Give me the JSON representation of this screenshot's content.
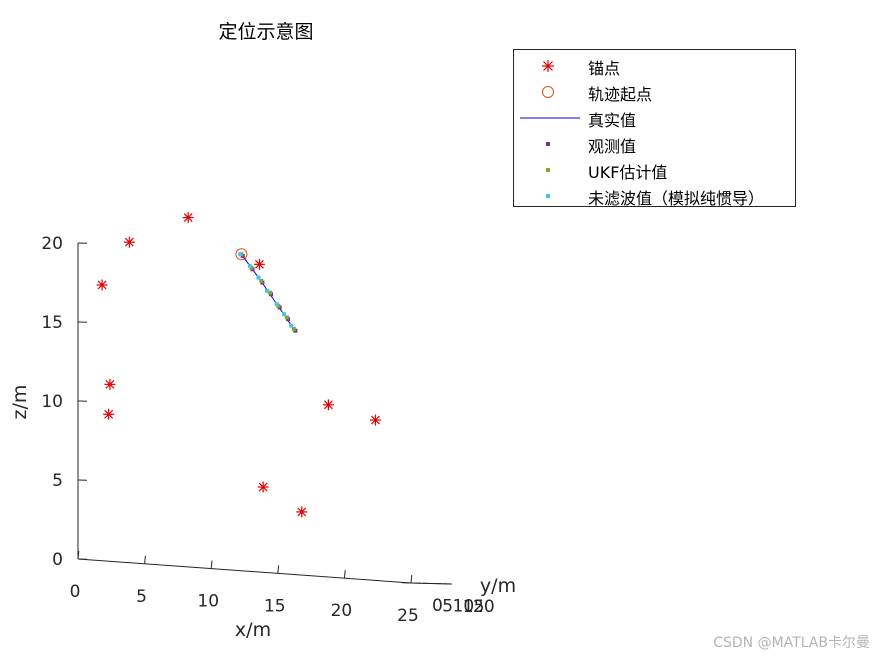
{
  "chart_data": {
    "type": "scatter",
    "title": "定位示意图",
    "xlabel": "x/m",
    "ylabel": "y/m",
    "zlabel": "z/m",
    "xlim": [
      0,
      25
    ],
    "ylim": [
      0,
      20
    ],
    "zlim": [
      0,
      20
    ],
    "xticks": [
      "0",
      "5",
      "10",
      "15",
      "20",
      "25"
    ],
    "yticks": [
      "0",
      "5",
      "10",
      "15",
      "20"
    ],
    "zticks": [
      "0",
      "5",
      "10",
      "15",
      "20"
    ],
    "legend_position": "top-right",
    "series": [
      {
        "name": "锚点",
        "marker": "asterisk",
        "color": "#e00000",
        "points": [
          [
            2.3,
            0,
            9.3
          ],
          [
            2.4,
            0,
            11.2
          ],
          [
            0.5,
            8.5,
            17.4
          ],
          [
            1.7,
            14,
            20.2
          ],
          [
            5.5,
            18,
            22.0
          ],
          [
            11.7,
            12.5,
            19.4
          ],
          [
            18.8,
            0,
            10.9
          ],
          [
            16.8,
            0,
            4.0
          ],
          [
            21.1,
            8,
            10.1
          ],
          [
            13.9,
            0,
            5.4
          ]
        ]
      },
      {
        "name": "轨迹起点",
        "marker": "circle",
        "color": "#d95319",
        "points": [
          [
            11.5,
            5,
            20
          ]
        ]
      },
      {
        "name": "真实值",
        "marker": "line",
        "color": "#0000ff",
        "points": [
          [
            11.5,
            5,
            20
          ],
          [
            12.8,
            5.5,
            18.5
          ],
          [
            14.0,
            6,
            17.0
          ],
          [
            15.2,
            6.5,
            15.5
          ]
        ]
      },
      {
        "name": "观测值",
        "marker": "square",
        "color": "#7e2f8e",
        "points": [
          [
            11.6,
            5.0,
            19.9
          ],
          [
            12.3,
            5.2,
            19.1
          ],
          [
            13.0,
            5.5,
            18.3
          ],
          [
            13.6,
            5.8,
            17.6
          ],
          [
            14.2,
            6.1,
            16.8
          ],
          [
            14.8,
            6.3,
            16.1
          ],
          [
            15.3,
            6.6,
            15.4
          ]
        ]
      },
      {
        "name": "UKF估计值",
        "marker": "square",
        "color": "#77ac30",
        "points": [
          [
            11.5,
            5.0,
            20.0
          ],
          [
            12.2,
            5.3,
            19.2
          ],
          [
            12.9,
            5.6,
            18.4
          ],
          [
            13.5,
            5.9,
            17.7
          ],
          [
            14.1,
            6.1,
            16.9
          ],
          [
            14.7,
            6.4,
            16.2
          ],
          [
            15.2,
            6.6,
            15.5
          ]
        ]
      },
      {
        "name": "未滤波值（模拟纯惯导）",
        "marker": "square",
        "color": "#4dbeee",
        "points": [
          [
            11.4,
            5.0,
            20.0
          ],
          [
            12.1,
            5.2,
            19.3
          ],
          [
            12.7,
            5.5,
            18.6
          ],
          [
            13.3,
            5.8,
            17.8
          ],
          [
            14.0,
            6.0,
            17.0
          ],
          [
            14.5,
            6.3,
            16.4
          ],
          [
            15.0,
            6.5,
            15.7
          ]
        ]
      }
    ]
  },
  "watermark": "CSDN @MATLAB卡尔曼"
}
